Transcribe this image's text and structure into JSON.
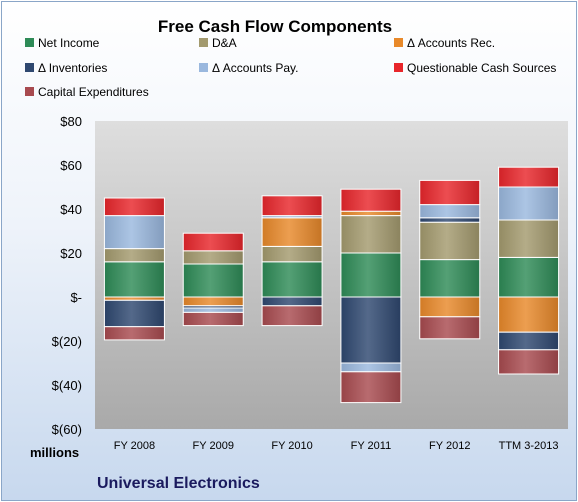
{
  "chart_data": {
    "type": "bar",
    "stacked": true,
    "title": "Free Cash Flow Components",
    "units_label": "millions",
    "company": "Universal Electronics",
    "categories": [
      "FY 2008",
      "FY 2009",
      "FY 2010",
      "FY 2011",
      "FY 2012",
      "TTM 3-2013"
    ],
    "y_ticks": [
      "$80",
      "$60",
      "$40",
      "$20",
      "$-",
      "$(20)",
      "$(40)",
      "$(60)"
    ],
    "ylim": [
      -60,
      80
    ],
    "grid": false,
    "legend_position": "top",
    "series": [
      {
        "name": "Net Income",
        "color": "#2e8b57",
        "values": [
          16,
          15,
          16,
          20,
          17,
          18
        ]
      },
      {
        "name": "D&A",
        "color": "#a39a6e",
        "values": [
          6,
          6,
          7,
          17,
          17,
          17
        ]
      },
      {
        "name": "Δ Accounts Rec.",
        "color": "#e8892a",
        "values": [
          -1.5,
          -4,
          13,
          2,
          -9,
          -16
        ]
      },
      {
        "name": "Δ Inventories",
        "color": "#2f4870",
        "values": [
          -12,
          -1,
          -4,
          -30,
          2,
          -8
        ]
      },
      {
        "name": "Δ Accounts Pay.",
        "color": "#9ab8de",
        "values": [
          15,
          -2,
          1,
          -4,
          6,
          15
        ]
      },
      {
        "name": "Questionable Cash Sources",
        "color": "#e8262b",
        "values": [
          8,
          8,
          9,
          10,
          11,
          9
        ]
      },
      {
        "name": "Capital Expenditures",
        "color": "#a84a4f",
        "values": [
          -6,
          -6,
          -9,
          -14,
          -10,
          -11
        ]
      }
    ]
  }
}
